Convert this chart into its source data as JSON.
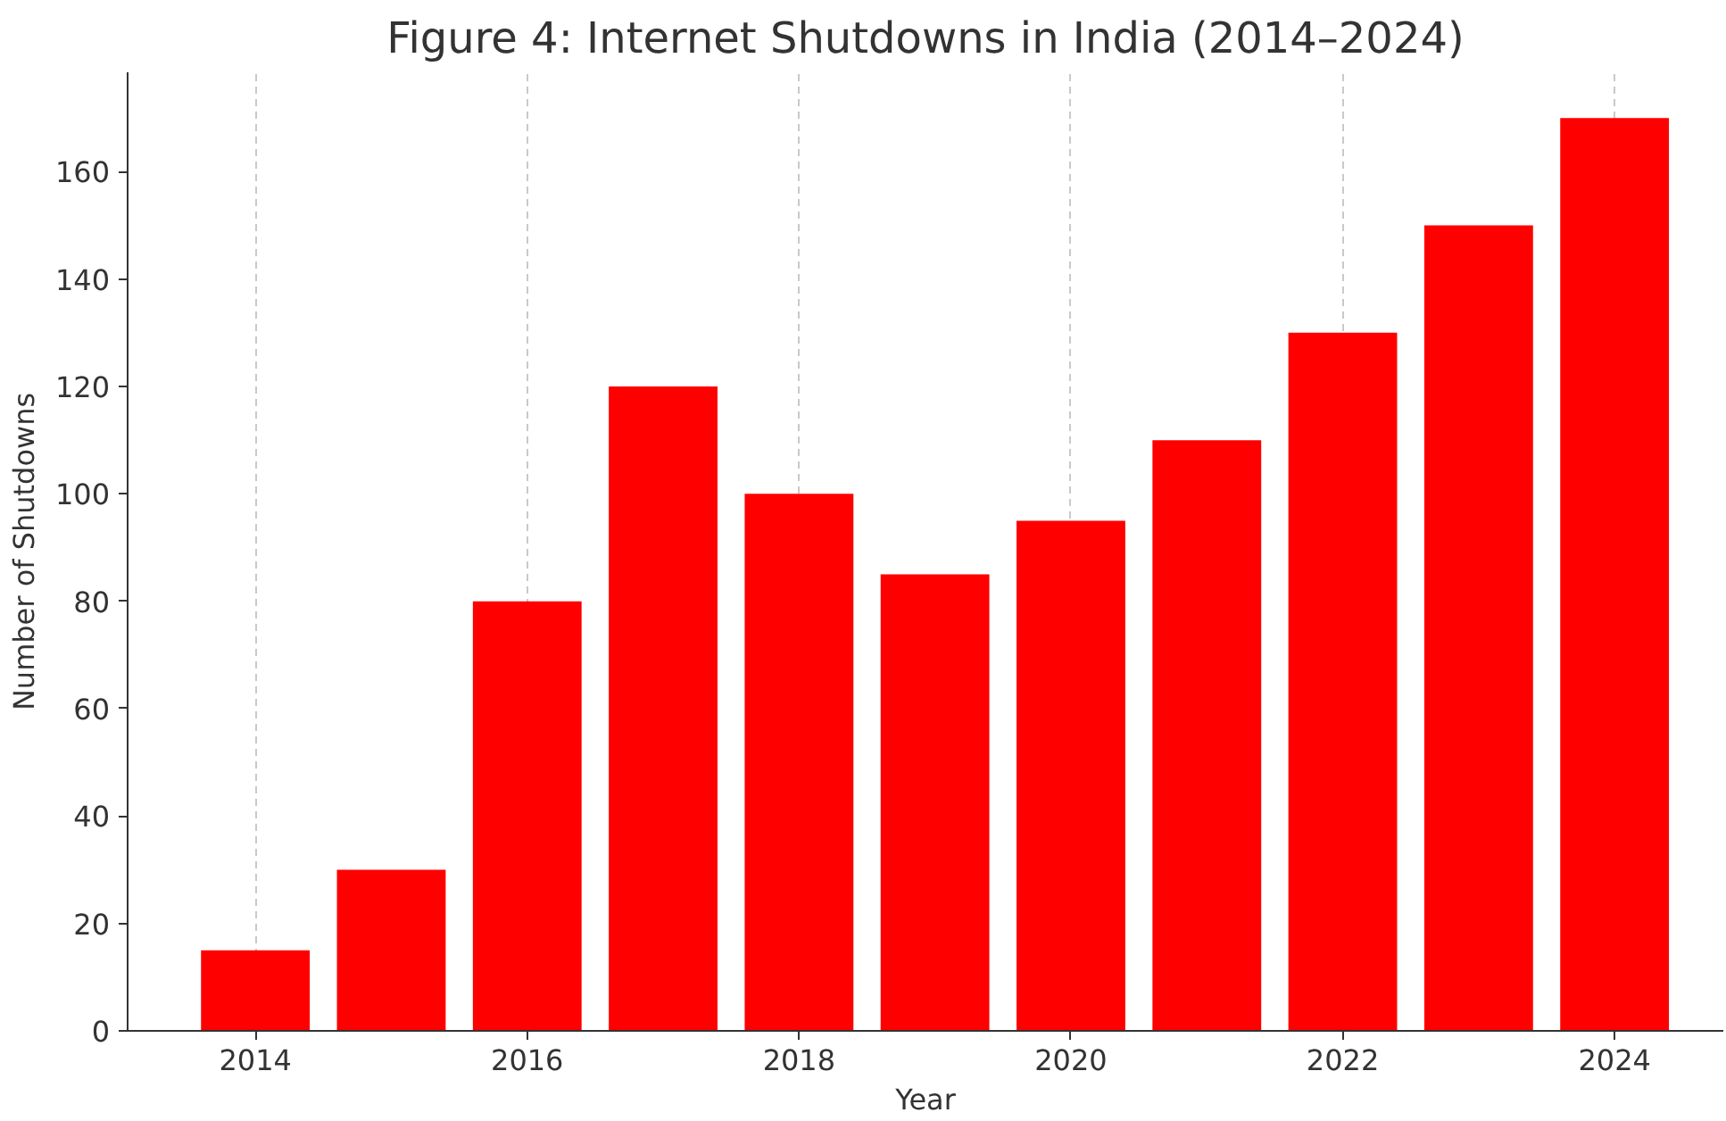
{
  "chart_data": {
    "type": "bar",
    "title": "Figure 4: Internet Shutdowns in India (2014–2024)",
    "xlabel": "Year",
    "ylabel": "Number of Shutdowns",
    "x": [
      2014,
      2015,
      2016,
      2017,
      2018,
      2019,
      2020,
      2021,
      2022,
      2023,
      2024
    ],
    "values": [
      15,
      30,
      80,
      120,
      100,
      85,
      95,
      110,
      130,
      150,
      170
    ],
    "color": "#ff0000",
    "xlim": [
      2013.06,
      2024.8
    ],
    "xticks": [
      2014,
      2016,
      2018,
      2020,
      2022,
      2024
    ],
    "ylim": [
      0,
      178.5
    ],
    "yticks": [
      0,
      20,
      40,
      60,
      80,
      100,
      120,
      140,
      160
    ],
    "grid": "x"
  }
}
